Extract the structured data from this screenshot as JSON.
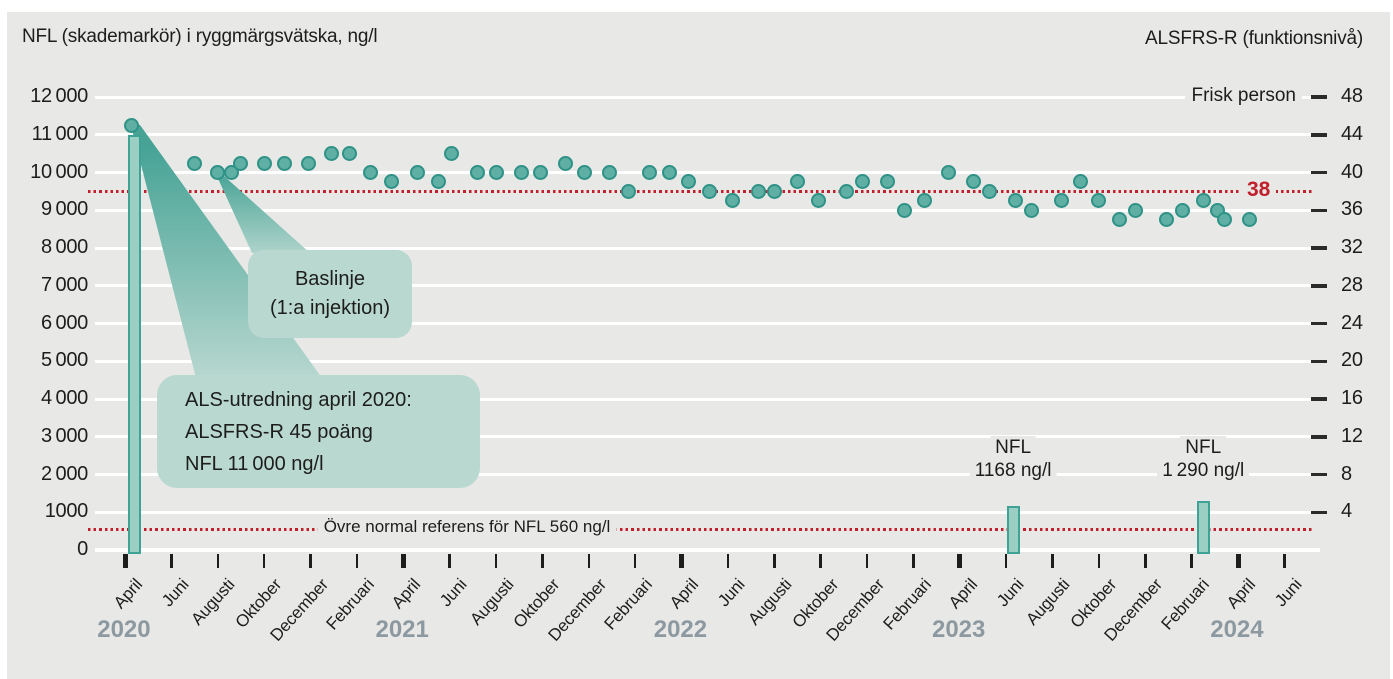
{
  "titles": {
    "left": "NFL (skademarkör) i ryggmärgsvätska, ng/l",
    "right": "ALSFRS-R (funktionsnivå)"
  },
  "labels": {
    "frisk_person": "Frisk person",
    "ref_38": "38",
    "nfl_reference": "Övre normal referens för NFL 560 ng/l"
  },
  "callouts": {
    "baslinje": {
      "line1": "Baslinje",
      "line2": "(1:a injektion)"
    },
    "utredning": {
      "line1": "ALS-utredning april 2020:",
      "line2": "ALSFRS-R 45 poäng",
      "line3": "NFL 11 000 ng/l"
    }
  },
  "colors": {
    "panel_background": "#e8e8e6",
    "gridline": "#ffffff",
    "text": "#1d1d1b",
    "reference_red": "#c0202c",
    "dot_fill": "#5fafa4",
    "dot_edge": "#2f9287",
    "bar_fill": "#9ccfc4",
    "bar_edge": "#3ea395",
    "callout_fill": "#b9d8d0",
    "year_gray": "#8d99a1"
  },
  "chart_data": {
    "type": "scatter",
    "description": "Dual-axis chart: teal dots = ALSFRS-R score (right axis), teal bars = NFL in cerebrospinal fluid ng/l (left axis), monthly from April 2020 to June 2024.",
    "left_axis": {
      "label": "NFL (skademarkör) i ryggmärgsvätska, ng/l",
      "range": [
        0,
        12000
      ],
      "ticks": [
        {
          "value": 12000,
          "label": "12 000"
        },
        {
          "value": 11000,
          "label": "11 000"
        },
        {
          "value": 10000,
          "label": "10 000"
        },
        {
          "value": 9000,
          "label": "9 000"
        },
        {
          "value": 8000,
          "label": "8 000"
        },
        {
          "value": 7000,
          "label": "7 000"
        },
        {
          "value": 6000,
          "label": "6 000"
        },
        {
          "value": 5000,
          "label": "5 000"
        },
        {
          "value": 4000,
          "label": "4 000"
        },
        {
          "value": 3000,
          "label": "3 000"
        },
        {
          "value": 2000,
          "label": "2 000"
        },
        {
          "value": 1000,
          "label": "1000"
        },
        {
          "value": 0,
          "label": "0"
        }
      ]
    },
    "right_axis": {
      "label": "ALSFRS-R (funktionsnivå)",
      "top_annotation": "Frisk person",
      "ticks": [
        48,
        44,
        40,
        36,
        32,
        28,
        24,
        20,
        16,
        12,
        8,
        4
      ],
      "points_per_1000_ngl": 4
    },
    "x_axis": {
      "unit": "months_after_april_2020",
      "ticks": [
        {
          "m": 0,
          "label": "April",
          "major": true
        },
        {
          "m": 2,
          "label": "Juni",
          "major": false
        },
        {
          "m": 4,
          "label": "Augusti",
          "major": false
        },
        {
          "m": 6,
          "label": "Oktober",
          "major": false
        },
        {
          "m": 8,
          "label": "December",
          "major": false
        },
        {
          "m": 10,
          "label": "Februari",
          "major": false
        },
        {
          "m": 12,
          "label": "April",
          "major": true
        },
        {
          "m": 14,
          "label": "Juni",
          "major": false
        },
        {
          "m": 16,
          "label": "Augusti",
          "major": false
        },
        {
          "m": 18,
          "label": "Oktober",
          "major": false
        },
        {
          "m": 20,
          "label": "December",
          "major": false
        },
        {
          "m": 22,
          "label": "Februari",
          "major": false
        },
        {
          "m": 24,
          "label": "April",
          "major": true
        },
        {
          "m": 26,
          "label": "Juni",
          "major": false
        },
        {
          "m": 28,
          "label": "Augusti",
          "major": false
        },
        {
          "m": 30,
          "label": "Oktober",
          "major": false
        },
        {
          "m": 32,
          "label": "December",
          "major": false
        },
        {
          "m": 34,
          "label": "Februari",
          "major": false
        },
        {
          "m": 36,
          "label": "April",
          "major": true
        },
        {
          "m": 38,
          "label": "Juni",
          "major": false
        },
        {
          "m": 40,
          "label": "Augusti",
          "major": false
        },
        {
          "m": 42,
          "label": "Oktober",
          "major": false
        },
        {
          "m": 44,
          "label": "December",
          "major": false
        },
        {
          "m": 46,
          "label": "Februari",
          "major": false
        },
        {
          "m": 48,
          "label": "April",
          "major": true
        },
        {
          "m": 50,
          "label": "Juni",
          "major": false
        }
      ],
      "years": [
        {
          "m": 0,
          "label": "2020"
        },
        {
          "m": 12,
          "label": "2021"
        },
        {
          "m": 24,
          "label": "2022"
        },
        {
          "m": 36,
          "label": "2023"
        },
        {
          "m": 48,
          "label": "2024"
        }
      ]
    },
    "reference_lines": [
      {
        "axis": "right",
        "value": 38,
        "label": "38"
      },
      {
        "axis": "left",
        "value": 560,
        "label": "Övre normal referens för NFL 560 ng/l"
      }
    ],
    "alsfrs_points": [
      [
        0.3,
        45
      ],
      [
        3.0,
        41
      ],
      [
        4.0,
        40
      ],
      [
        4.6,
        40
      ],
      [
        5.0,
        41
      ],
      [
        6.0,
        41
      ],
      [
        6.9,
        41
      ],
      [
        7.9,
        41
      ],
      [
        8.9,
        42
      ],
      [
        9.7,
        42
      ],
      [
        10.6,
        40
      ],
      [
        11.5,
        39
      ],
      [
        12.6,
        40
      ],
      [
        13.5,
        39
      ],
      [
        14.1,
        42
      ],
      [
        15.2,
        40
      ],
      [
        16.0,
        40
      ],
      [
        17.1,
        40
      ],
      [
        17.9,
        40
      ],
      [
        19.0,
        41
      ],
      [
        19.8,
        40
      ],
      [
        20.9,
        40
      ],
      [
        21.7,
        38
      ],
      [
        22.6,
        40
      ],
      [
        23.5,
        40
      ],
      [
        24.3,
        39
      ],
      [
        25.2,
        38
      ],
      [
        26.2,
        37
      ],
      [
        27.3,
        38
      ],
      [
        28.0,
        38
      ],
      [
        29.0,
        39
      ],
      [
        29.9,
        37
      ],
      [
        31.1,
        38
      ],
      [
        31.8,
        39
      ],
      [
        32.9,
        39
      ],
      [
        33.6,
        36
      ],
      [
        34.5,
        37
      ],
      [
        35.5,
        40
      ],
      [
        36.6,
        39
      ],
      [
        37.3,
        38
      ],
      [
        38.4,
        37
      ],
      [
        39.1,
        36
      ],
      [
        40.4,
        37
      ],
      [
        41.2,
        39
      ],
      [
        42.0,
        37
      ],
      [
        42.9,
        35
      ],
      [
        43.6,
        36
      ],
      [
        44.9,
        35
      ],
      [
        45.6,
        36
      ],
      [
        46.5,
        37
      ],
      [
        47.1,
        36
      ],
      [
        47.4,
        35
      ],
      [
        48.5,
        35
      ]
    ],
    "nfl_bars": [
      {
        "m": 0.4,
        "value": 11000,
        "label_lines": []
      },
      {
        "m": 38.3,
        "value": 1168,
        "label_lines": [
          "NFL",
          "1168 ng/l"
        ]
      },
      {
        "m": 46.5,
        "value": 1290,
        "label_lines": [
          "NFL",
          "1 290 ng/l"
        ]
      }
    ]
  }
}
